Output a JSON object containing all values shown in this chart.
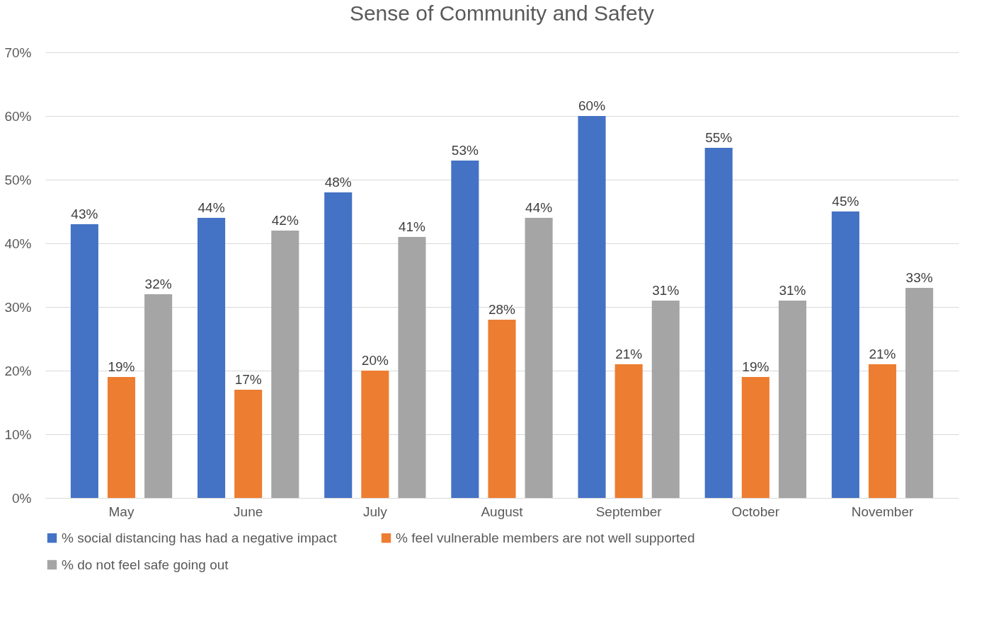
{
  "chart_data": {
    "type": "bar",
    "title": "Sense of Community and Safety",
    "categories": [
      "May",
      "June",
      "July",
      "August",
      "September",
      "October",
      "November"
    ],
    "series": [
      {
        "name": "% social distancing has had a negative impact",
        "color": "#4472c4",
        "values": [
          43,
          44,
          48,
          53,
          60,
          55,
          45
        ],
        "value_labels": [
          "43%",
          "44%",
          "48%",
          "53%",
          "60%",
          "55%",
          "45%"
        ]
      },
      {
        "name": "% feel vulnerable members are not well supported",
        "color": "#ed7d31",
        "values": [
          19,
          17,
          20,
          28,
          21,
          19,
          21
        ],
        "value_labels": [
          "19%",
          "17%",
          "20%",
          "28%",
          "21%",
          "19%",
          "21%"
        ]
      },
      {
        "name": "% do not feel safe going out",
        "color": "#a5a5a5",
        "values": [
          32,
          42,
          41,
          44,
          31,
          31,
          33
        ],
        "value_labels": [
          "32%",
          "42%",
          "41%",
          "44%",
          "31%",
          "31%",
          "33%"
        ]
      }
    ],
    "ylim": [
      0,
      70
    ],
    "yticks": [
      {
        "value": 0,
        "label": "0%"
      },
      {
        "value": 10,
        "label": "10%"
      },
      {
        "value": 20,
        "label": "20%"
      },
      {
        "value": 30,
        "label": "30%"
      },
      {
        "value": 40,
        "label": "40%"
      },
      {
        "value": 50,
        "label": "50%"
      },
      {
        "value": 60,
        "label": "60%"
      },
      {
        "value": 70,
        "label": "70%"
      }
    ],
    "grid": "y",
    "legend": "bottom"
  }
}
